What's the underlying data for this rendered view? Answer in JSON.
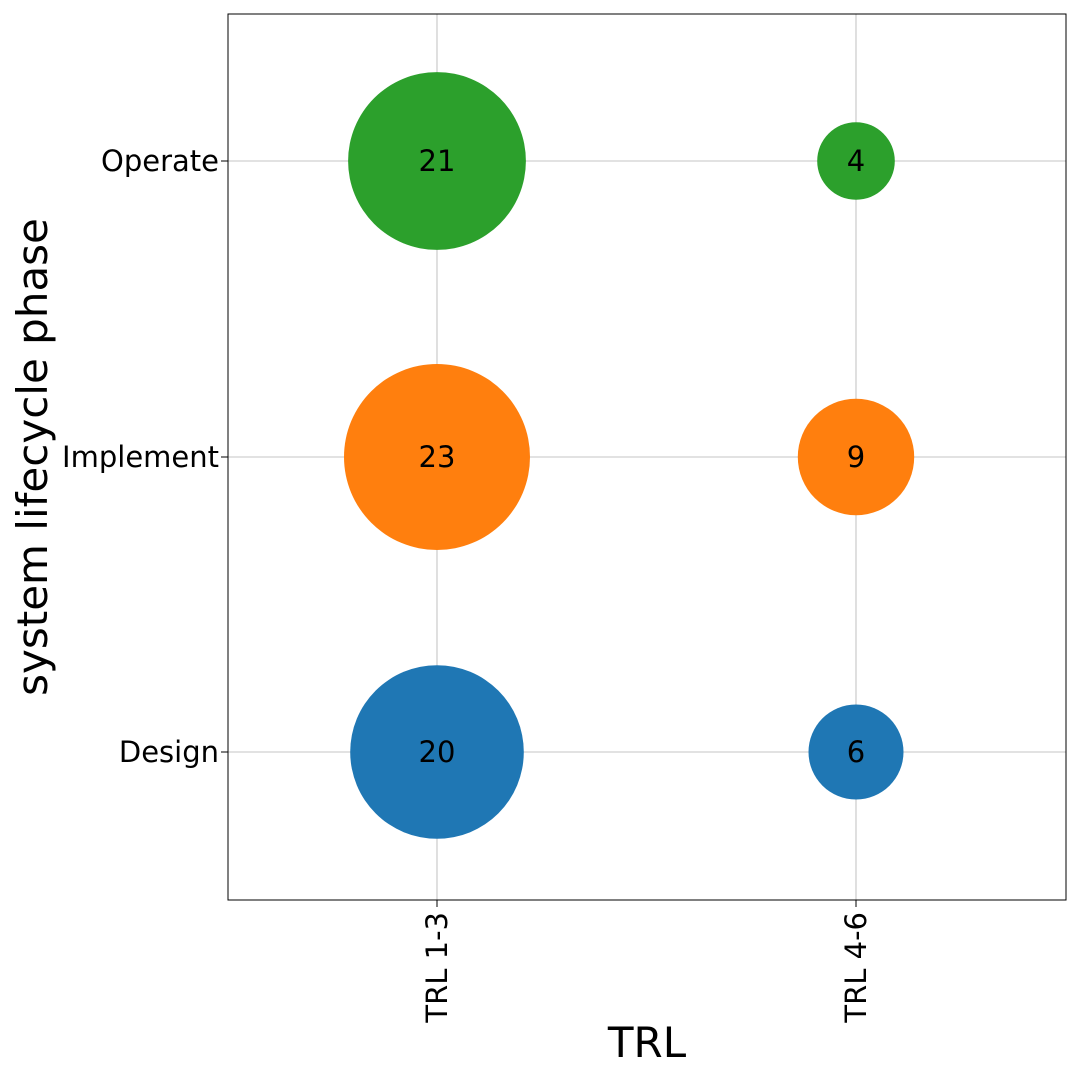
{
  "chart_data": {
    "type": "scatter",
    "subtype": "bubble",
    "xlabel": "TRL",
    "ylabel": "system lifecycle phase",
    "x_categories": [
      "TRL 1-3",
      "TRL 4-6"
    ],
    "y_categories": [
      "Design",
      "Implement",
      "Operate"
    ],
    "grid": true,
    "colors": {
      "Design": "#1f77b4",
      "Implement": "#ff7f0e",
      "Operate": "#2ca02c"
    },
    "points": [
      {
        "x": "TRL 1-3",
        "y": "Design",
        "value": 20,
        "label": "20"
      },
      {
        "x": "TRL 4-6",
        "y": "Design",
        "value": 6,
        "label": "6"
      },
      {
        "x": "TRL 1-3",
        "y": "Implement",
        "value": 23,
        "label": "23"
      },
      {
        "x": "TRL 4-6",
        "y": "Implement",
        "value": 9,
        "label": "9"
      },
      {
        "x": "TRL 1-3",
        "y": "Operate",
        "value": 21,
        "label": "21"
      },
      {
        "x": "TRL 4-6",
        "y": "Operate",
        "value": 4,
        "label": "4"
      }
    ]
  }
}
